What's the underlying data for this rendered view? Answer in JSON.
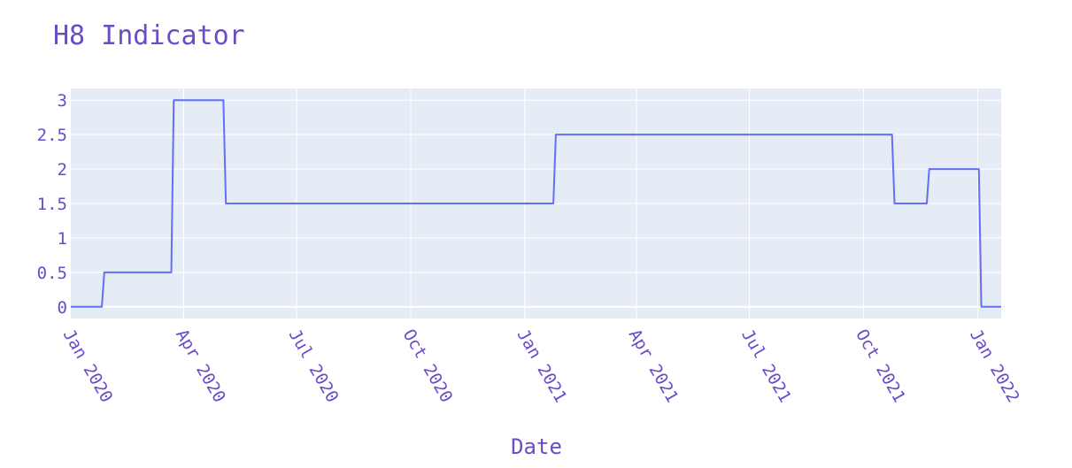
{
  "colors": {
    "background": "#ffffff",
    "plot_background": "#e5ecf6",
    "grid": "#ffffff",
    "series_line": "#636efa",
    "text": "#6a4bc8"
  },
  "chart_data": {
    "type": "line",
    "line_shape": "step",
    "title": "H8 Indicator",
    "xlabel": "Date",
    "ylabel": "",
    "x_axis_type": "date",
    "xlim": [
      "2020-01-01",
      "2022-01-20"
    ],
    "ylim": [
      -0.17,
      3.17
    ],
    "grid": true,
    "legend": "none",
    "x_ticks": [
      {
        "value": "2020-01-01",
        "label": "Jan 2020"
      },
      {
        "value": "2020-04-01",
        "label": "Apr 2020"
      },
      {
        "value": "2020-07-01",
        "label": "Jul 2020"
      },
      {
        "value": "2020-10-01",
        "label": "Oct 2020"
      },
      {
        "value": "2021-01-01",
        "label": "Jan 2021"
      },
      {
        "value": "2021-04-01",
        "label": "Apr 2021"
      },
      {
        "value": "2021-07-01",
        "label": "Jul 2021"
      },
      {
        "value": "2021-10-01",
        "label": "Oct 2021"
      },
      {
        "value": "2022-01-01",
        "label": "Jan 2022"
      }
    ],
    "y_ticks": [
      {
        "value": 0,
        "label": "0"
      },
      {
        "value": 0.5,
        "label": "0.5"
      },
      {
        "value": 1,
        "label": "1"
      },
      {
        "value": 1.5,
        "label": "1.5"
      },
      {
        "value": 2,
        "label": "2"
      },
      {
        "value": 2.5,
        "label": "2.5"
      },
      {
        "value": 3,
        "label": "3"
      }
    ],
    "series": [
      {
        "points": [
          {
            "x": "2020-01-01",
            "y": 0
          },
          {
            "x": "2020-01-26",
            "y": 0
          },
          {
            "x": "2020-01-28",
            "y": 0.5
          },
          {
            "x": "2020-03-22",
            "y": 0.5
          },
          {
            "x": "2020-03-24",
            "y": 3
          },
          {
            "x": "2020-05-03",
            "y": 3
          },
          {
            "x": "2020-05-05",
            "y": 1.5
          },
          {
            "x": "2021-01-24",
            "y": 1.5
          },
          {
            "x": "2021-01-26",
            "y": 2.5
          },
          {
            "x": "2021-10-24",
            "y": 2.5
          },
          {
            "x": "2021-10-26",
            "y": 1.5
          },
          {
            "x": "2021-11-21",
            "y": 1.5
          },
          {
            "x": "2021-11-23",
            "y": 2
          },
          {
            "x": "2022-01-02",
            "y": 2
          },
          {
            "x": "2022-01-04",
            "y": 0
          },
          {
            "x": "2022-01-20",
            "y": 0
          }
        ]
      }
    ]
  }
}
